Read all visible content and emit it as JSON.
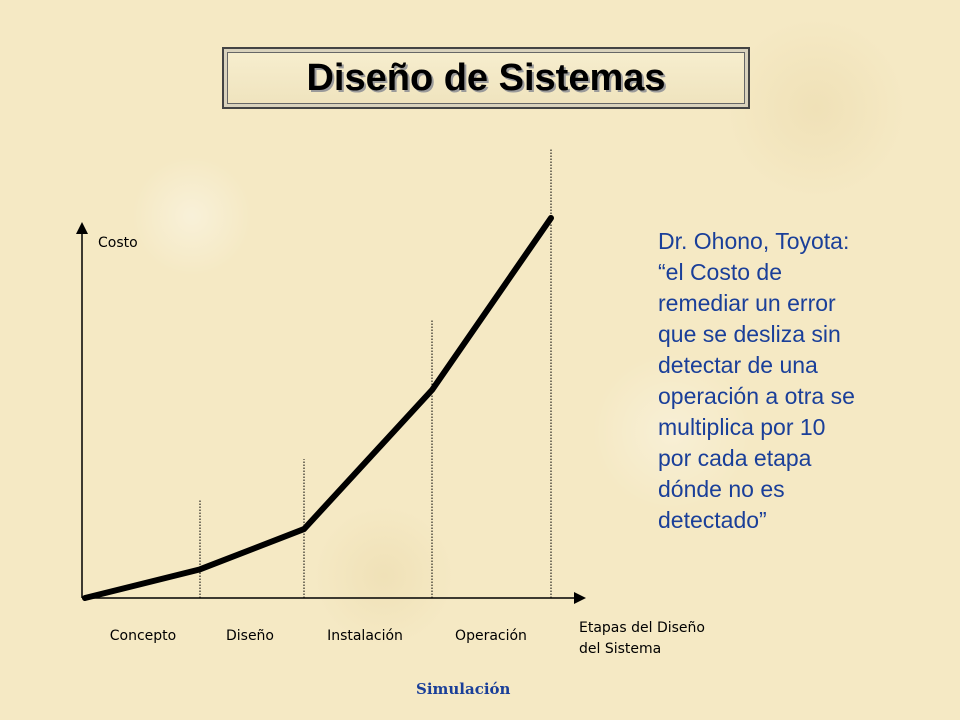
{
  "slide": {
    "title": "Diseño de Sistemas",
    "quote_lines": [
      "Dr. Ohono, Toyota:",
      "“el Costo de",
      "remediar un error",
      "que se desliza sin",
      "detectar de una",
      "operación a otra se",
      "multiplica por 10",
      "por cada etapa",
      "dónde no es",
      "detectado”"
    ],
    "footer": "Simulación"
  },
  "chart_data": {
    "type": "line",
    "ylabel": "Costo",
    "xlabel_lines": [
      "Etapas del Diseño",
      "del Sistema"
    ],
    "categories": [
      "Concepto",
      "Diseño",
      "Instalación",
      "Operación"
    ],
    "x": [
      0,
      1,
      2,
      3,
      4
    ],
    "values": [
      0,
      0.04,
      0.15,
      0.53,
      1.0
    ],
    "series_color": "#000000",
    "axis_color": "#000000",
    "grid": false
  }
}
